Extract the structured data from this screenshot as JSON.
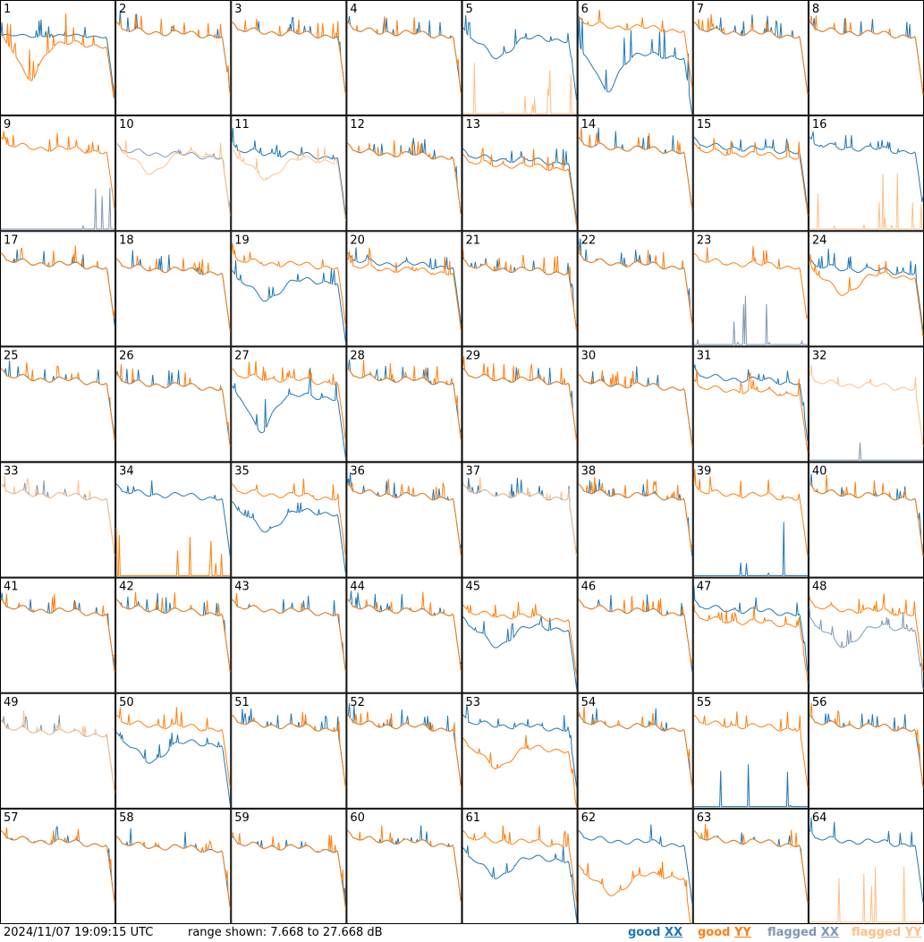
{
  "timestamp": "2024/11/07 19:09:15 UTC",
  "range_text": "range shown: 7.668 to 27.668 dB",
  "legend": {
    "good_xx": {
      "word": "good",
      "pol": "XX",
      "color": "#1f77b4"
    },
    "good_yy": {
      "word": "good",
      "pol": "YY",
      "color": "#ff7f0e"
    },
    "flagged_xx": {
      "word": "flagged",
      "pol": "XX",
      "color": "#7f97b4"
    },
    "flagged_yy": {
      "word": "flagged",
      "pol": "YY",
      "color": "#ffbf87"
    }
  },
  "chart_data": {
    "type": "line",
    "ylim": [
      7.668,
      27.668
    ],
    "y_unit": "dB",
    "grid_columns": 8,
    "tiles": [
      {
        "label": "1",
        "xx": {
          "profile": "hump",
          "level": 21.5,
          "flagged": false
        },
        "yy": {
          "profile": "bigdip",
          "level": 20,
          "flagged": false
        }
      },
      {
        "label": "2",
        "xx": {
          "profile": "flat",
          "level": 22,
          "flagged": false
        },
        "yy": {
          "profile": "flat",
          "level": 22,
          "flagged": false
        }
      },
      {
        "label": "3",
        "xx": {
          "profile": "flat",
          "level": 22,
          "flagged": false
        },
        "yy": {
          "profile": "flat",
          "level": 22,
          "flagged": false
        }
      },
      {
        "label": "4",
        "xx": {
          "profile": "flat",
          "level": 22,
          "flagged": false
        },
        "yy": {
          "profile": "flat",
          "level": 22,
          "flagged": false
        }
      },
      {
        "label": "5",
        "xx": {
          "profile": "dip",
          "level": 21,
          "flagged": false
        },
        "yy": {
          "profile": "dead",
          "level": 8,
          "flagged": true
        }
      },
      {
        "label": "6",
        "xx": {
          "profile": "bigdip",
          "level": 18,
          "flagged": false
        },
        "yy": {
          "profile": "flat",
          "level": 23,
          "flagged": false
        }
      },
      {
        "label": "7",
        "xx": {
          "profile": "flat",
          "level": 22,
          "flagged": false
        },
        "yy": {
          "profile": "flat",
          "level": 22,
          "flagged": false
        }
      },
      {
        "label": "8",
        "xx": {
          "profile": "flat",
          "level": 22,
          "flagged": false
        },
        "yy": {
          "profile": "flat",
          "level": 22,
          "flagged": false
        }
      },
      {
        "label": "9",
        "xx": {
          "profile": "dead",
          "level": 8,
          "flagged": true
        },
        "yy": {
          "profile": "flat",
          "level": 22,
          "flagged": false
        }
      },
      {
        "label": "10",
        "xx": {
          "profile": "flat",
          "level": 21,
          "flagged": true
        },
        "yy": {
          "profile": "dip",
          "level": 21,
          "flagged": true
        }
      },
      {
        "label": "11",
        "xx": {
          "profile": "flat",
          "level": 21,
          "flagged": false
        },
        "yy": {
          "profile": "dip",
          "level": 20,
          "flagged": true
        }
      },
      {
        "label": "12",
        "xx": {
          "profile": "flat",
          "level": 21,
          "flagged": false
        },
        "yy": {
          "profile": "flat",
          "level": 21,
          "flagged": false
        }
      },
      {
        "label": "13",
        "xx": {
          "profile": "flat",
          "level": 20,
          "flagged": false
        },
        "yy": {
          "profile": "flat",
          "level": 19,
          "flagged": false
        }
      },
      {
        "label": "14",
        "xx": {
          "profile": "flat",
          "level": 22,
          "flagged": false
        },
        "yy": {
          "profile": "flat",
          "level": 22,
          "flagged": false
        }
      },
      {
        "label": "15",
        "xx": {
          "profile": "flat",
          "level": 22,
          "flagged": false
        },
        "yy": {
          "profile": "flat",
          "level": 21,
          "flagged": false
        }
      },
      {
        "label": "16",
        "xx": {
          "profile": "flat",
          "level": 22,
          "flagged": false
        },
        "yy": {
          "profile": "dead",
          "level": 8,
          "flagged": true
        }
      },
      {
        "label": "17",
        "xx": {
          "profile": "flat",
          "level": 22,
          "flagged": false
        },
        "yy": {
          "profile": "flat",
          "level": 22,
          "flagged": false
        }
      },
      {
        "label": "18",
        "xx": {
          "profile": "flat",
          "level": 21,
          "flagged": false
        },
        "yy": {
          "profile": "flat",
          "level": 21,
          "flagged": false
        }
      },
      {
        "label": "19",
        "xx": {
          "profile": "dip",
          "level": 19,
          "flagged": false
        },
        "yy": {
          "profile": "flat",
          "level": 22,
          "flagged": false
        }
      },
      {
        "label": "20",
        "xx": {
          "profile": "flat",
          "level": 22,
          "flagged": false
        },
        "yy": {
          "profile": "flat",
          "level": 21,
          "flagged": false
        }
      },
      {
        "label": "21",
        "xx": {
          "profile": "flat",
          "level": 21,
          "flagged": false
        },
        "yy": {
          "profile": "flat",
          "level": 21,
          "flagged": false
        }
      },
      {
        "label": "22",
        "xx": {
          "profile": "flat",
          "level": 22,
          "flagged": false
        },
        "yy": {
          "profile": "flat",
          "level": 22,
          "flagged": false
        }
      },
      {
        "label": "23",
        "xx": {
          "profile": "dead",
          "level": 9,
          "flagged": true
        },
        "yy": {
          "profile": "flat",
          "level": 22,
          "flagged": false
        }
      },
      {
        "label": "24",
        "xx": {
          "profile": "flat",
          "level": 21,
          "flagged": false
        },
        "yy": {
          "profile": "dip",
          "level": 20,
          "flagged": false
        }
      },
      {
        "label": "25",
        "xx": {
          "profile": "flat",
          "level": 22,
          "flagged": false
        },
        "yy": {
          "profile": "flat",
          "level": 22,
          "flagged": false
        }
      },
      {
        "label": "26",
        "xx": {
          "profile": "flat",
          "level": 21,
          "flagged": false
        },
        "yy": {
          "profile": "flat",
          "level": 21,
          "flagged": false
        }
      },
      {
        "label": "27",
        "xx": {
          "profile": "bigdip",
          "level": 19,
          "flagged": false
        },
        "yy": {
          "profile": "flat",
          "level": 22,
          "flagged": false
        }
      },
      {
        "label": "28",
        "xx": {
          "profile": "flat",
          "level": 22,
          "flagged": false
        },
        "yy": {
          "profile": "flat",
          "level": 22,
          "flagged": false
        }
      },
      {
        "label": "29",
        "xx": {
          "profile": "flat",
          "level": 22,
          "flagged": false
        },
        "yy": {
          "profile": "flat",
          "level": 22,
          "flagged": false
        }
      },
      {
        "label": "30",
        "xx": {
          "profile": "flat",
          "level": 21,
          "flagged": false
        },
        "yy": {
          "profile": "flat",
          "level": 21,
          "flagged": false
        }
      },
      {
        "label": "31",
        "xx": {
          "profile": "flat",
          "level": 22,
          "flagged": false
        },
        "yy": {
          "profile": "flat",
          "level": 20,
          "flagged": false
        }
      },
      {
        "label": "32",
        "xx": {
          "profile": "dead",
          "level": 8,
          "flagged": true
        },
        "yy": {
          "profile": "flat",
          "level": 21,
          "flagged": true
        }
      },
      {
        "label": "33",
        "xx": {
          "profile": "flat",
          "level": 22,
          "flagged": true
        },
        "yy": {
          "profile": "flat",
          "level": 22,
          "flagged": true
        }
      },
      {
        "label": "34",
        "xx": {
          "profile": "flat",
          "level": 22,
          "flagged": false
        },
        "yy": {
          "profile": "dead",
          "level": 9,
          "flagged": false
        }
      },
      {
        "label": "35",
        "xx": {
          "profile": "dip",
          "level": 19,
          "flagged": false
        },
        "yy": {
          "profile": "flat",
          "level": 22,
          "flagged": false
        }
      },
      {
        "label": "36",
        "xx": {
          "profile": "flat",
          "level": 22,
          "flagged": false
        },
        "yy": {
          "profile": "flat",
          "level": 22,
          "flagged": false
        }
      },
      {
        "label": "37",
        "xx": {
          "profile": "flat",
          "level": 22,
          "flagged": false
        },
        "yy": {
          "profile": "flat",
          "level": 22,
          "flagged": true
        }
      },
      {
        "label": "38",
        "xx": {
          "profile": "flat",
          "level": 22,
          "flagged": false
        },
        "yy": {
          "profile": "flat",
          "level": 22,
          "flagged": false
        }
      },
      {
        "label": "39",
        "xx": {
          "profile": "dead",
          "level": 8,
          "flagged": false
        },
        "yy": {
          "profile": "flat",
          "level": 22,
          "flagged": false
        }
      },
      {
        "label": "40",
        "xx": {
          "profile": "flat",
          "level": 22,
          "flagged": false
        },
        "yy": {
          "profile": "flat",
          "level": 22,
          "flagged": false
        }
      },
      {
        "label": "41",
        "xx": {
          "profile": "flat",
          "level": 22,
          "flagged": false
        },
        "yy": {
          "profile": "flat",
          "level": 22,
          "flagged": false
        }
      },
      {
        "label": "42",
        "xx": {
          "profile": "flat",
          "level": 22,
          "flagged": false
        },
        "yy": {
          "profile": "flat",
          "level": 22,
          "flagged": false
        }
      },
      {
        "label": "43",
        "xx": {
          "profile": "flat",
          "level": 22,
          "flagged": false
        },
        "yy": {
          "profile": "flat",
          "level": 22,
          "flagged": false
        }
      },
      {
        "label": "44",
        "xx": {
          "profile": "flat",
          "level": 22,
          "flagged": false
        },
        "yy": {
          "profile": "flat",
          "level": 22,
          "flagged": false
        }
      },
      {
        "label": "45",
        "xx": {
          "profile": "dip",
          "level": 19,
          "flagged": false
        },
        "yy": {
          "profile": "flat",
          "level": 21,
          "flagged": false
        }
      },
      {
        "label": "46",
        "xx": {
          "profile": "flat",
          "level": 22,
          "flagged": false
        },
        "yy": {
          "profile": "flat",
          "level": 22,
          "flagged": false
        }
      },
      {
        "label": "47",
        "xx": {
          "profile": "flat",
          "level": 22,
          "flagged": false
        },
        "yy": {
          "profile": "flat",
          "level": 20,
          "flagged": false
        }
      },
      {
        "label": "48",
        "xx": {
          "profile": "dip",
          "level": 19,
          "flagged": true
        },
        "yy": {
          "profile": "flat",
          "level": 22,
          "flagged": false
        }
      },
      {
        "label": "49",
        "xx": {
          "profile": "flat",
          "level": 21,
          "flagged": true
        },
        "yy": {
          "profile": "flat",
          "level": 21,
          "flagged": true
        }
      },
      {
        "label": "50",
        "xx": {
          "profile": "dip",
          "level": 19,
          "flagged": false
        },
        "yy": {
          "profile": "flat",
          "level": 22,
          "flagged": false
        }
      },
      {
        "label": "51",
        "xx": {
          "profile": "flat",
          "level": 22,
          "flagged": false
        },
        "yy": {
          "profile": "flat",
          "level": 22,
          "flagged": false
        }
      },
      {
        "label": "52",
        "xx": {
          "profile": "flat",
          "level": 22,
          "flagged": false
        },
        "yy": {
          "profile": "flat",
          "level": 22,
          "flagged": false
        }
      },
      {
        "label": "53",
        "xx": {
          "profile": "flat",
          "level": 22,
          "flagged": false
        },
        "yy": {
          "profile": "dip",
          "level": 18,
          "flagged": false
        }
      },
      {
        "label": "54",
        "xx": {
          "profile": "flat",
          "level": 22,
          "flagged": false
        },
        "yy": {
          "profile": "flat",
          "level": 22,
          "flagged": false
        }
      },
      {
        "label": "55",
        "xx": {
          "profile": "dead",
          "level": 9,
          "flagged": false
        },
        "yy": {
          "profile": "flat",
          "level": 22,
          "flagged": false
        }
      },
      {
        "label": "56",
        "xx": {
          "profile": "flat",
          "level": 22,
          "flagged": false
        },
        "yy": {
          "profile": "flat",
          "level": 22,
          "flagged": false
        }
      },
      {
        "label": "57",
        "xx": {
          "profile": "flat",
          "level": 22,
          "flagged": false
        },
        "yy": {
          "profile": "flat",
          "level": 22,
          "flagged": false
        }
      },
      {
        "label": "58",
        "xx": {
          "profile": "flat",
          "level": 21,
          "flagged": false
        },
        "yy": {
          "profile": "flat",
          "level": 21,
          "flagged": false
        }
      },
      {
        "label": "59",
        "xx": {
          "profile": "flat",
          "level": 21,
          "flagged": false
        },
        "yy": {
          "profile": "flat",
          "level": 21,
          "flagged": false
        }
      },
      {
        "label": "60",
        "xx": {
          "profile": "flat",
          "level": 22,
          "flagged": false
        },
        "yy": {
          "profile": "flat",
          "level": 22,
          "flagged": false
        }
      },
      {
        "label": "61",
        "xx": {
          "profile": "dip",
          "level": 19,
          "flagged": false
        },
        "yy": {
          "profile": "flat",
          "level": 22,
          "flagged": false
        }
      },
      {
        "label": "62",
        "xx": {
          "profile": "flat",
          "level": 22,
          "flagged": false
        },
        "yy": {
          "profile": "dip",
          "level": 16,
          "flagged": false
        }
      },
      {
        "label": "63",
        "xx": {
          "profile": "flat",
          "level": 22,
          "flagged": false
        },
        "yy": {
          "profile": "flat",
          "level": 22,
          "flagged": false
        }
      },
      {
        "label": "64",
        "xx": {
          "profile": "flat",
          "level": 22,
          "flagged": false
        },
        "yy": {
          "profile": "dead",
          "level": 8,
          "flagged": true
        }
      }
    ]
  }
}
